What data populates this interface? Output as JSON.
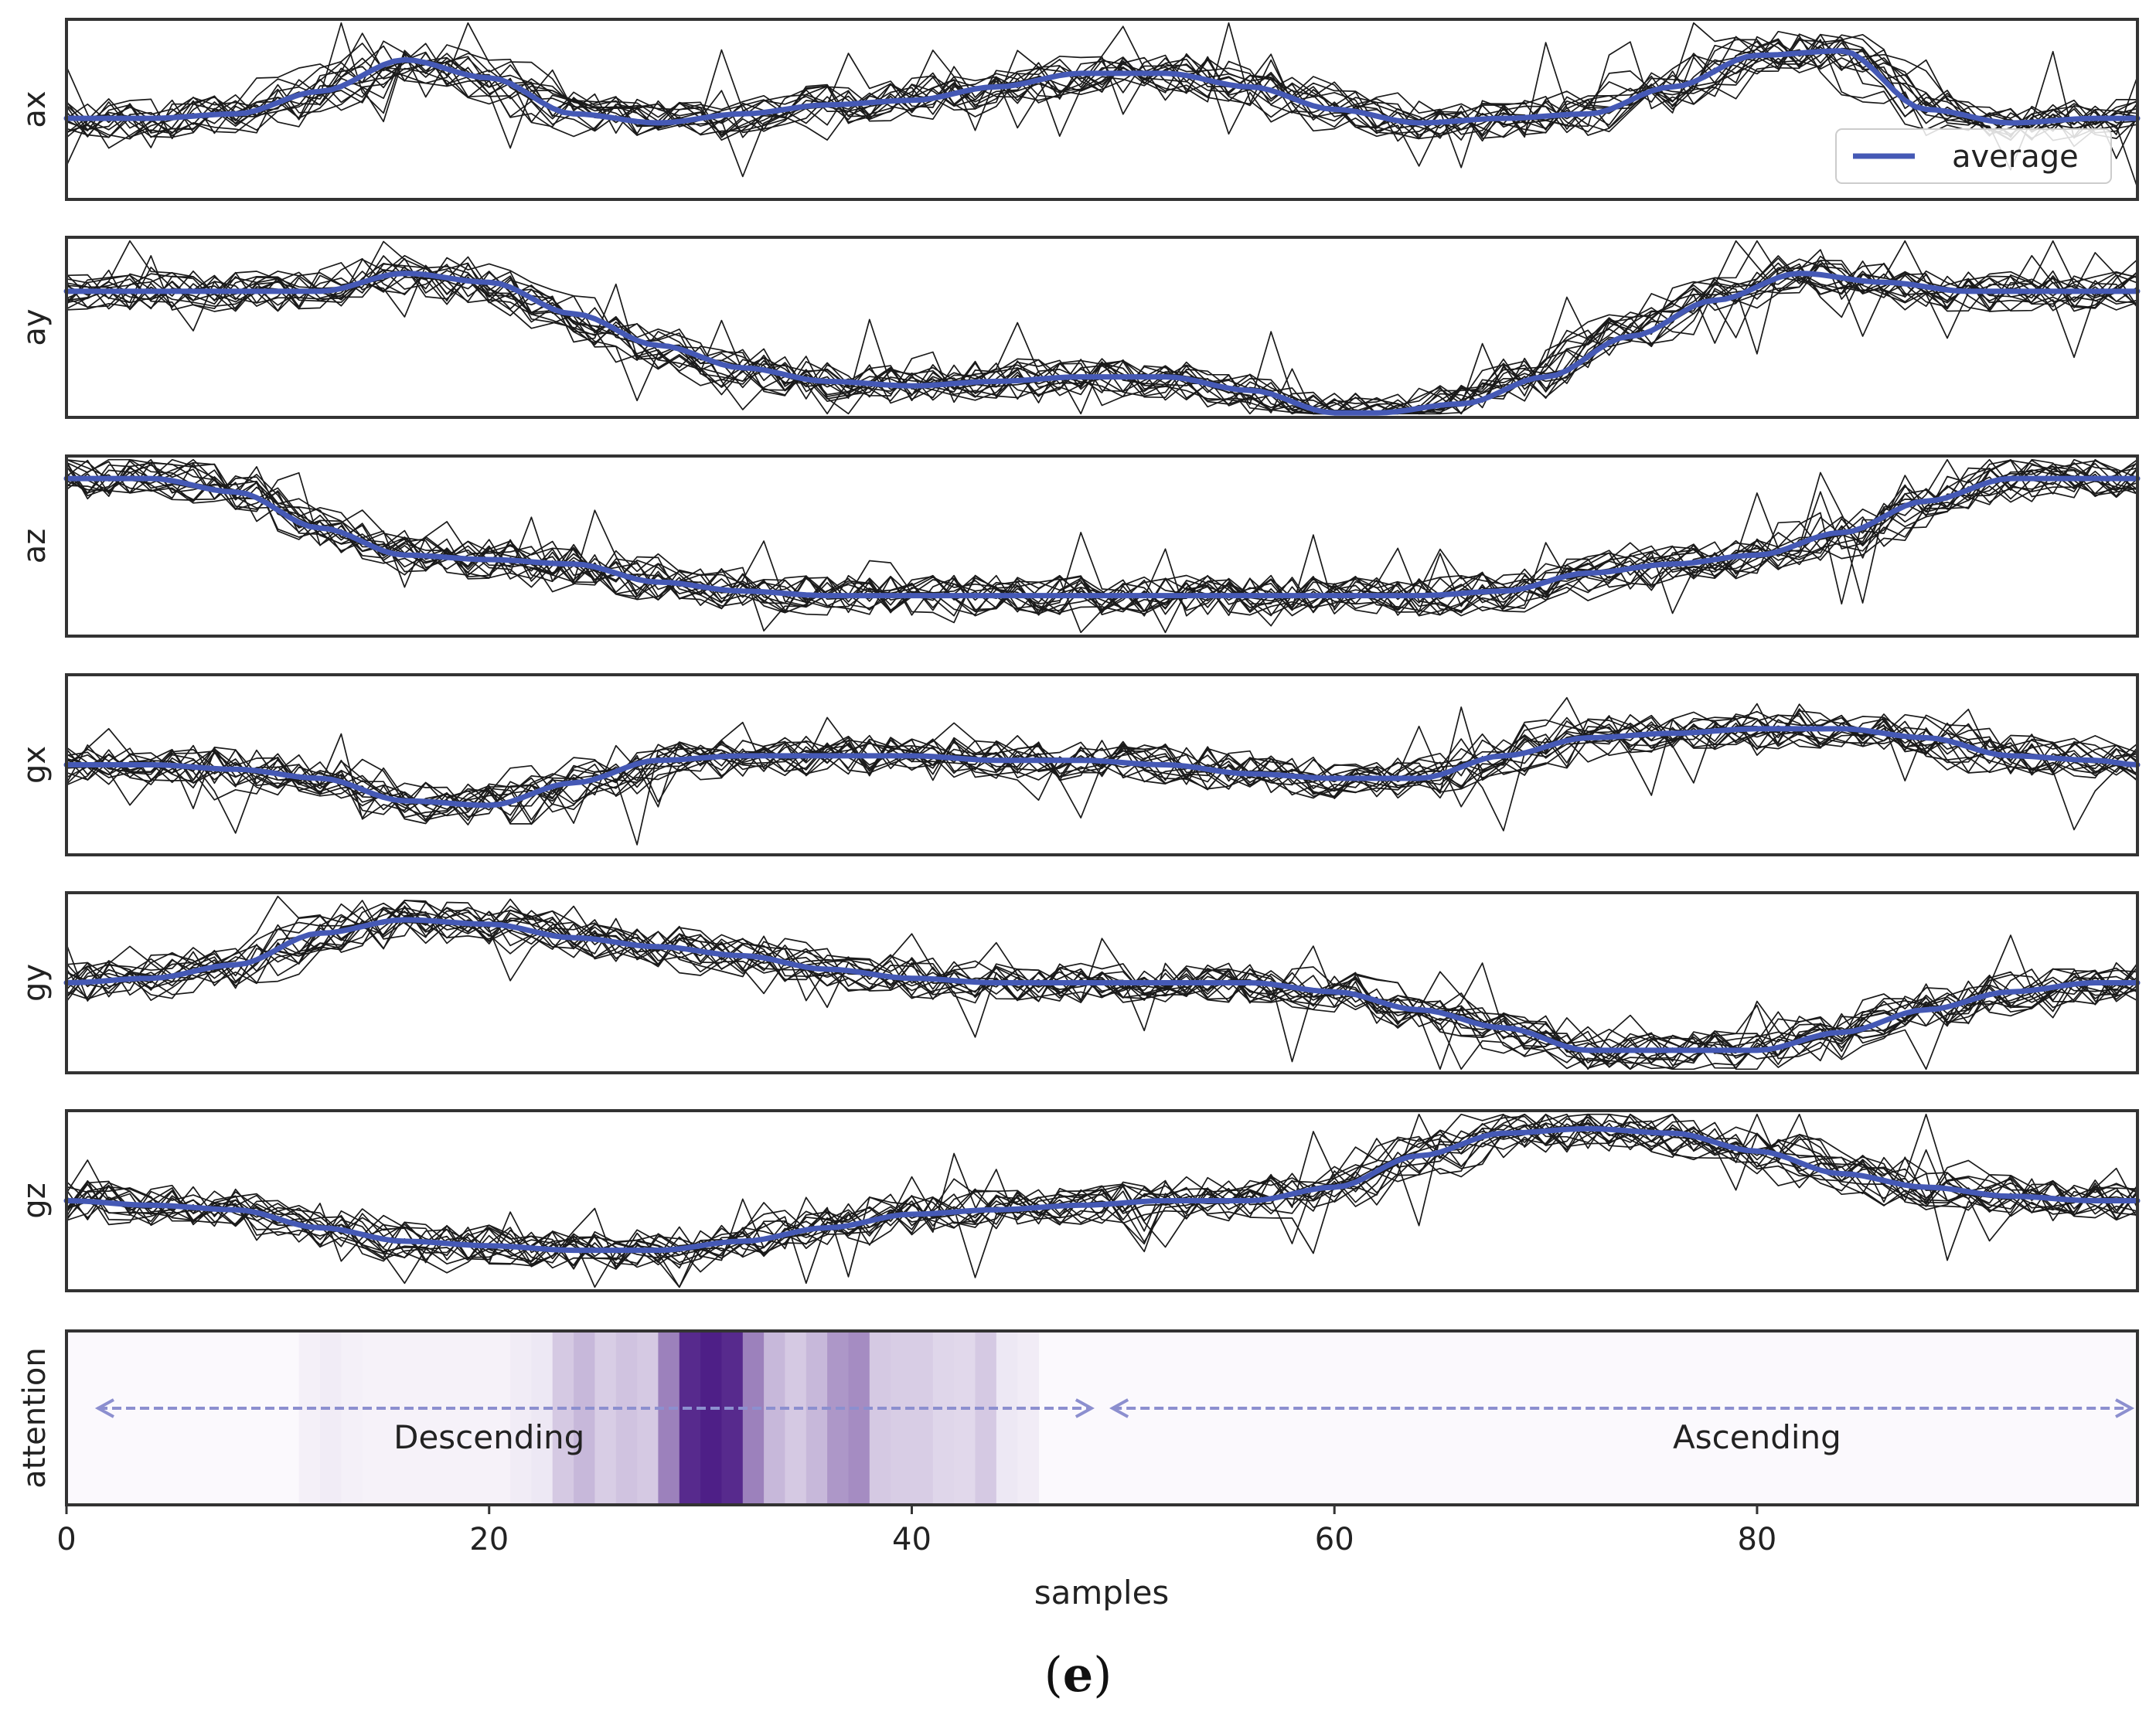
{
  "figure": {
    "caption_open": "(",
    "caption_letter": "e",
    "caption_close": ")"
  },
  "colors": {
    "trial": "#1a1a1a",
    "average": "#4559b5",
    "frame": "#333333",
    "attention_base": "#fbf9fd",
    "attention_dark": "#4e1f87",
    "arrow": "#8c8fcf"
  },
  "chart_data": [
    {
      "type": "line",
      "ylabel": "ax",
      "xlim": [
        0,
        98
      ],
      "ylim": [
        -1,
        1
      ],
      "x": [
        0,
        4,
        8,
        12,
        16,
        20,
        24,
        28,
        32,
        36,
        40,
        44,
        48,
        52,
        56,
        60,
        64,
        68,
        72,
        76,
        80,
        84,
        88,
        92,
        96,
        98
      ],
      "series": [
        {
          "name": "average",
          "values": [
            -0.1,
            -0.1,
            -0.05,
            0.2,
            0.55,
            0.35,
            -0.05,
            -0.15,
            -0.05,
            0.05,
            0.1,
            0.25,
            0.4,
            0.4,
            0.25,
            0.0,
            -0.15,
            -0.1,
            -0.05,
            0.25,
            0.6,
            0.65,
            0.0,
            -0.15,
            -0.1,
            -0.1
          ]
        }
      ],
      "trials": 15,
      "legend": {
        "entries": [
          "average"
        ],
        "position": "lower-right"
      }
    },
    {
      "type": "line",
      "ylabel": "ay",
      "xlim": [
        0,
        98
      ],
      "ylim": [
        -1,
        1
      ],
      "x": [
        0,
        4,
        8,
        12,
        16,
        20,
        24,
        28,
        32,
        36,
        40,
        44,
        48,
        52,
        56,
        60,
        62,
        66,
        70,
        74,
        78,
        82,
        86,
        90,
        94,
        98
      ],
      "series": [
        {
          "name": "average",
          "values": [
            0.4,
            0.4,
            0.4,
            0.4,
            0.6,
            0.5,
            0.15,
            -0.2,
            -0.45,
            -0.6,
            -0.65,
            -0.6,
            -0.55,
            -0.55,
            -0.7,
            -0.95,
            -0.95,
            -0.85,
            -0.55,
            -0.1,
            0.3,
            0.6,
            0.5,
            0.4,
            0.4,
            0.4
          ]
        }
      ],
      "trials": 15
    },
    {
      "type": "line",
      "ylabel": "az",
      "xlim": [
        0,
        98
      ],
      "ylim": [
        -1,
        1
      ],
      "x": [
        0,
        4,
        8,
        12,
        16,
        20,
        24,
        28,
        32,
        36,
        40,
        44,
        48,
        52,
        56,
        60,
        64,
        68,
        72,
        76,
        80,
        84,
        88,
        92,
        96,
        98
      ],
      "series": [
        {
          "name": "average",
          "values": [
            0.75,
            0.75,
            0.6,
            0.2,
            -0.1,
            -0.15,
            -0.2,
            -0.4,
            -0.5,
            -0.55,
            -0.55,
            -0.55,
            -0.55,
            -0.55,
            -0.55,
            -0.55,
            -0.55,
            -0.5,
            -0.3,
            -0.2,
            -0.1,
            0.15,
            0.5,
            0.75,
            0.75,
            0.75
          ]
        }
      ],
      "trials": 15
    },
    {
      "type": "line",
      "ylabel": "gx",
      "xlim": [
        0,
        98
      ],
      "ylim": [
        -1,
        1
      ],
      "x": [
        0,
        4,
        8,
        12,
        16,
        20,
        24,
        28,
        32,
        36,
        40,
        44,
        48,
        52,
        56,
        60,
        64,
        68,
        72,
        76,
        80,
        84,
        88,
        92,
        96,
        98
      ],
      "series": [
        {
          "name": "average",
          "values": [
            0.0,
            0.0,
            -0.05,
            -0.15,
            -0.4,
            -0.45,
            -0.2,
            0.05,
            0.1,
            0.1,
            0.1,
            0.05,
            0.05,
            0.0,
            -0.1,
            -0.15,
            -0.15,
            0.1,
            0.3,
            0.35,
            0.4,
            0.4,
            0.3,
            0.1,
            0.05,
            0.0
          ]
        }
      ],
      "trials": 15
    },
    {
      "type": "line",
      "ylabel": "gy",
      "xlim": [
        0,
        98
      ],
      "ylim": [
        -1,
        1
      ],
      "x": [
        0,
        4,
        8,
        12,
        16,
        20,
        24,
        28,
        32,
        36,
        40,
        44,
        48,
        52,
        56,
        60,
        64,
        68,
        72,
        76,
        80,
        84,
        88,
        92,
        96,
        98
      ],
      "series": [
        {
          "name": "average",
          "values": [
            0.0,
            0.05,
            0.2,
            0.55,
            0.7,
            0.65,
            0.5,
            0.4,
            0.3,
            0.15,
            0.05,
            0.0,
            0.0,
            0.0,
            0.0,
            -0.1,
            -0.3,
            -0.5,
            -0.75,
            -0.75,
            -0.75,
            -0.55,
            -0.3,
            -0.1,
            0.0,
            0.0
          ]
        }
      ],
      "trials": 15
    },
    {
      "type": "line",
      "ylabel": "gz",
      "xlim": [
        0,
        98
      ],
      "ylim": [
        -1,
        1
      ],
      "x": [
        0,
        4,
        8,
        12,
        16,
        20,
        24,
        28,
        32,
        36,
        40,
        44,
        48,
        52,
        56,
        60,
        64,
        68,
        72,
        76,
        80,
        84,
        88,
        92,
        96,
        98
      ],
      "series": [
        {
          "name": "average",
          "values": [
            0.0,
            -0.05,
            -0.1,
            -0.3,
            -0.45,
            -0.5,
            -0.55,
            -0.55,
            -0.45,
            -0.3,
            -0.15,
            -0.1,
            -0.05,
            0.0,
            0.0,
            0.15,
            0.5,
            0.75,
            0.8,
            0.75,
            0.55,
            0.3,
            0.15,
            0.05,
            0.0,
            0.0
          ]
        }
      ],
      "trials": 15
    },
    {
      "type": "heatmap",
      "ylabel": "attention",
      "xlabel": "samples",
      "xlim": [
        0,
        98
      ],
      "xticks": [
        0,
        20,
        40,
        60,
        80
      ],
      "xtick_labels": [
        "0",
        "20",
        "40",
        "60",
        "80"
      ],
      "weights": [
        0,
        0,
        0,
        0,
        0,
        0,
        0,
        0,
        0,
        0,
        0,
        0.04,
        0.06,
        0.04,
        0.03,
        0.03,
        0.03,
        0.03,
        0.03,
        0.03,
        0.03,
        0.06,
        0.08,
        0.22,
        0.3,
        0.2,
        0.25,
        0.22,
        0.55,
        0.95,
        1.0,
        0.95,
        0.55,
        0.3,
        0.22,
        0.3,
        0.45,
        0.5,
        0.22,
        0.2,
        0.2,
        0.16,
        0.15,
        0.22,
        0.08,
        0.06,
        0,
        0,
        0,
        0,
        0,
        0,
        0,
        0,
        0,
        0,
        0,
        0,
        0,
        0,
        0,
        0,
        0,
        0,
        0,
        0,
        0,
        0,
        0,
        0,
        0,
        0,
        0,
        0,
        0,
        0,
        0,
        0,
        0,
        0,
        0,
        0,
        0,
        0,
        0,
        0,
        0,
        0,
        0,
        0,
        0,
        0,
        0,
        0,
        0,
        0,
        0,
        0
      ],
      "annotations": [
        {
          "label": "Descending",
          "x_start": 1.5,
          "x_end": 48.5,
          "label_x": 20
        },
        {
          "label": "Ascending",
          "x_start": 49.5,
          "x_end": 98,
          "label_x": 80
        }
      ]
    }
  ]
}
